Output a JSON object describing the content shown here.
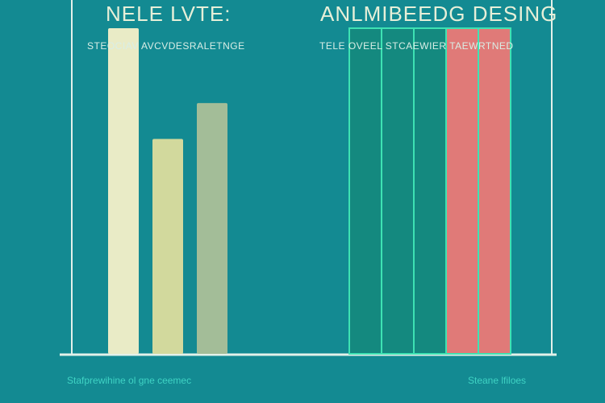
{
  "chart_data": [
    {
      "type": "bar",
      "title": "NELE LVTE:",
      "subtitle": "STEOCIAV AVCVDESRALETNGE",
      "caption": "Stafprewihine ol gne ceemec",
      "values": [
        100,
        66,
        77
      ],
      "ylim": [
        0,
        100
      ],
      "colors": [
        "#e9ebc6",
        "#d2d99d",
        "#a3bd98"
      ]
    },
    {
      "type": "bar",
      "title": "ANLMIBEEDG DESING",
      "subtitle": "TELE OVEEL STCAEWIER TAEWRTNED",
      "caption": "Steane lfiloes",
      "values": [
        100,
        100,
        100,
        100,
        100
      ],
      "ylim": [
        0,
        100
      ],
      "colors": [
        "#14897f",
        "#14897f",
        "#14897f",
        "#e07a78",
        "#e07a78"
      ],
      "outline": "#3ee2b3"
    }
  ]
}
